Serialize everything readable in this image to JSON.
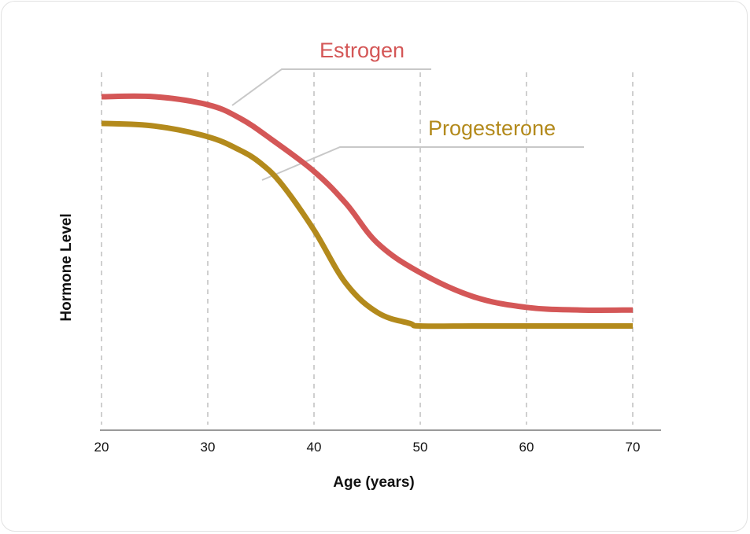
{
  "chart_data": {
    "type": "line",
    "title": "",
    "xlabel": "Age (years)",
    "ylabel": "Hormone Level",
    "xlim": [
      20,
      70
    ],
    "ylim": [
      0,
      100
    ],
    "x_ticks": [
      "20",
      "30",
      "40",
      "50",
      "60",
      "70"
    ],
    "grid": "vertical dashed",
    "legend": "inline labels with leader lines",
    "series": [
      {
        "name": "Estrogen",
        "color": "#d45757",
        "x": [
          20,
          25,
          30,
          33,
          36,
          40,
          43,
          46,
          50,
          55,
          60,
          65,
          70
        ],
        "y": [
          100,
          100,
          97,
          92,
          84,
          72,
          60,
          45,
          34,
          25,
          21,
          20,
          20
        ]
      },
      {
        "name": "Progesterone",
        "color": "#b38a1c",
        "x": [
          20,
          25,
          30,
          33,
          35,
          37,
          40,
          43,
          46,
          49,
          50,
          55,
          60,
          70
        ],
        "y": [
          90,
          89,
          85,
          80,
          75,
          67,
          50,
          30,
          19,
          15,
          14,
          14,
          14,
          14
        ]
      }
    ]
  }
}
